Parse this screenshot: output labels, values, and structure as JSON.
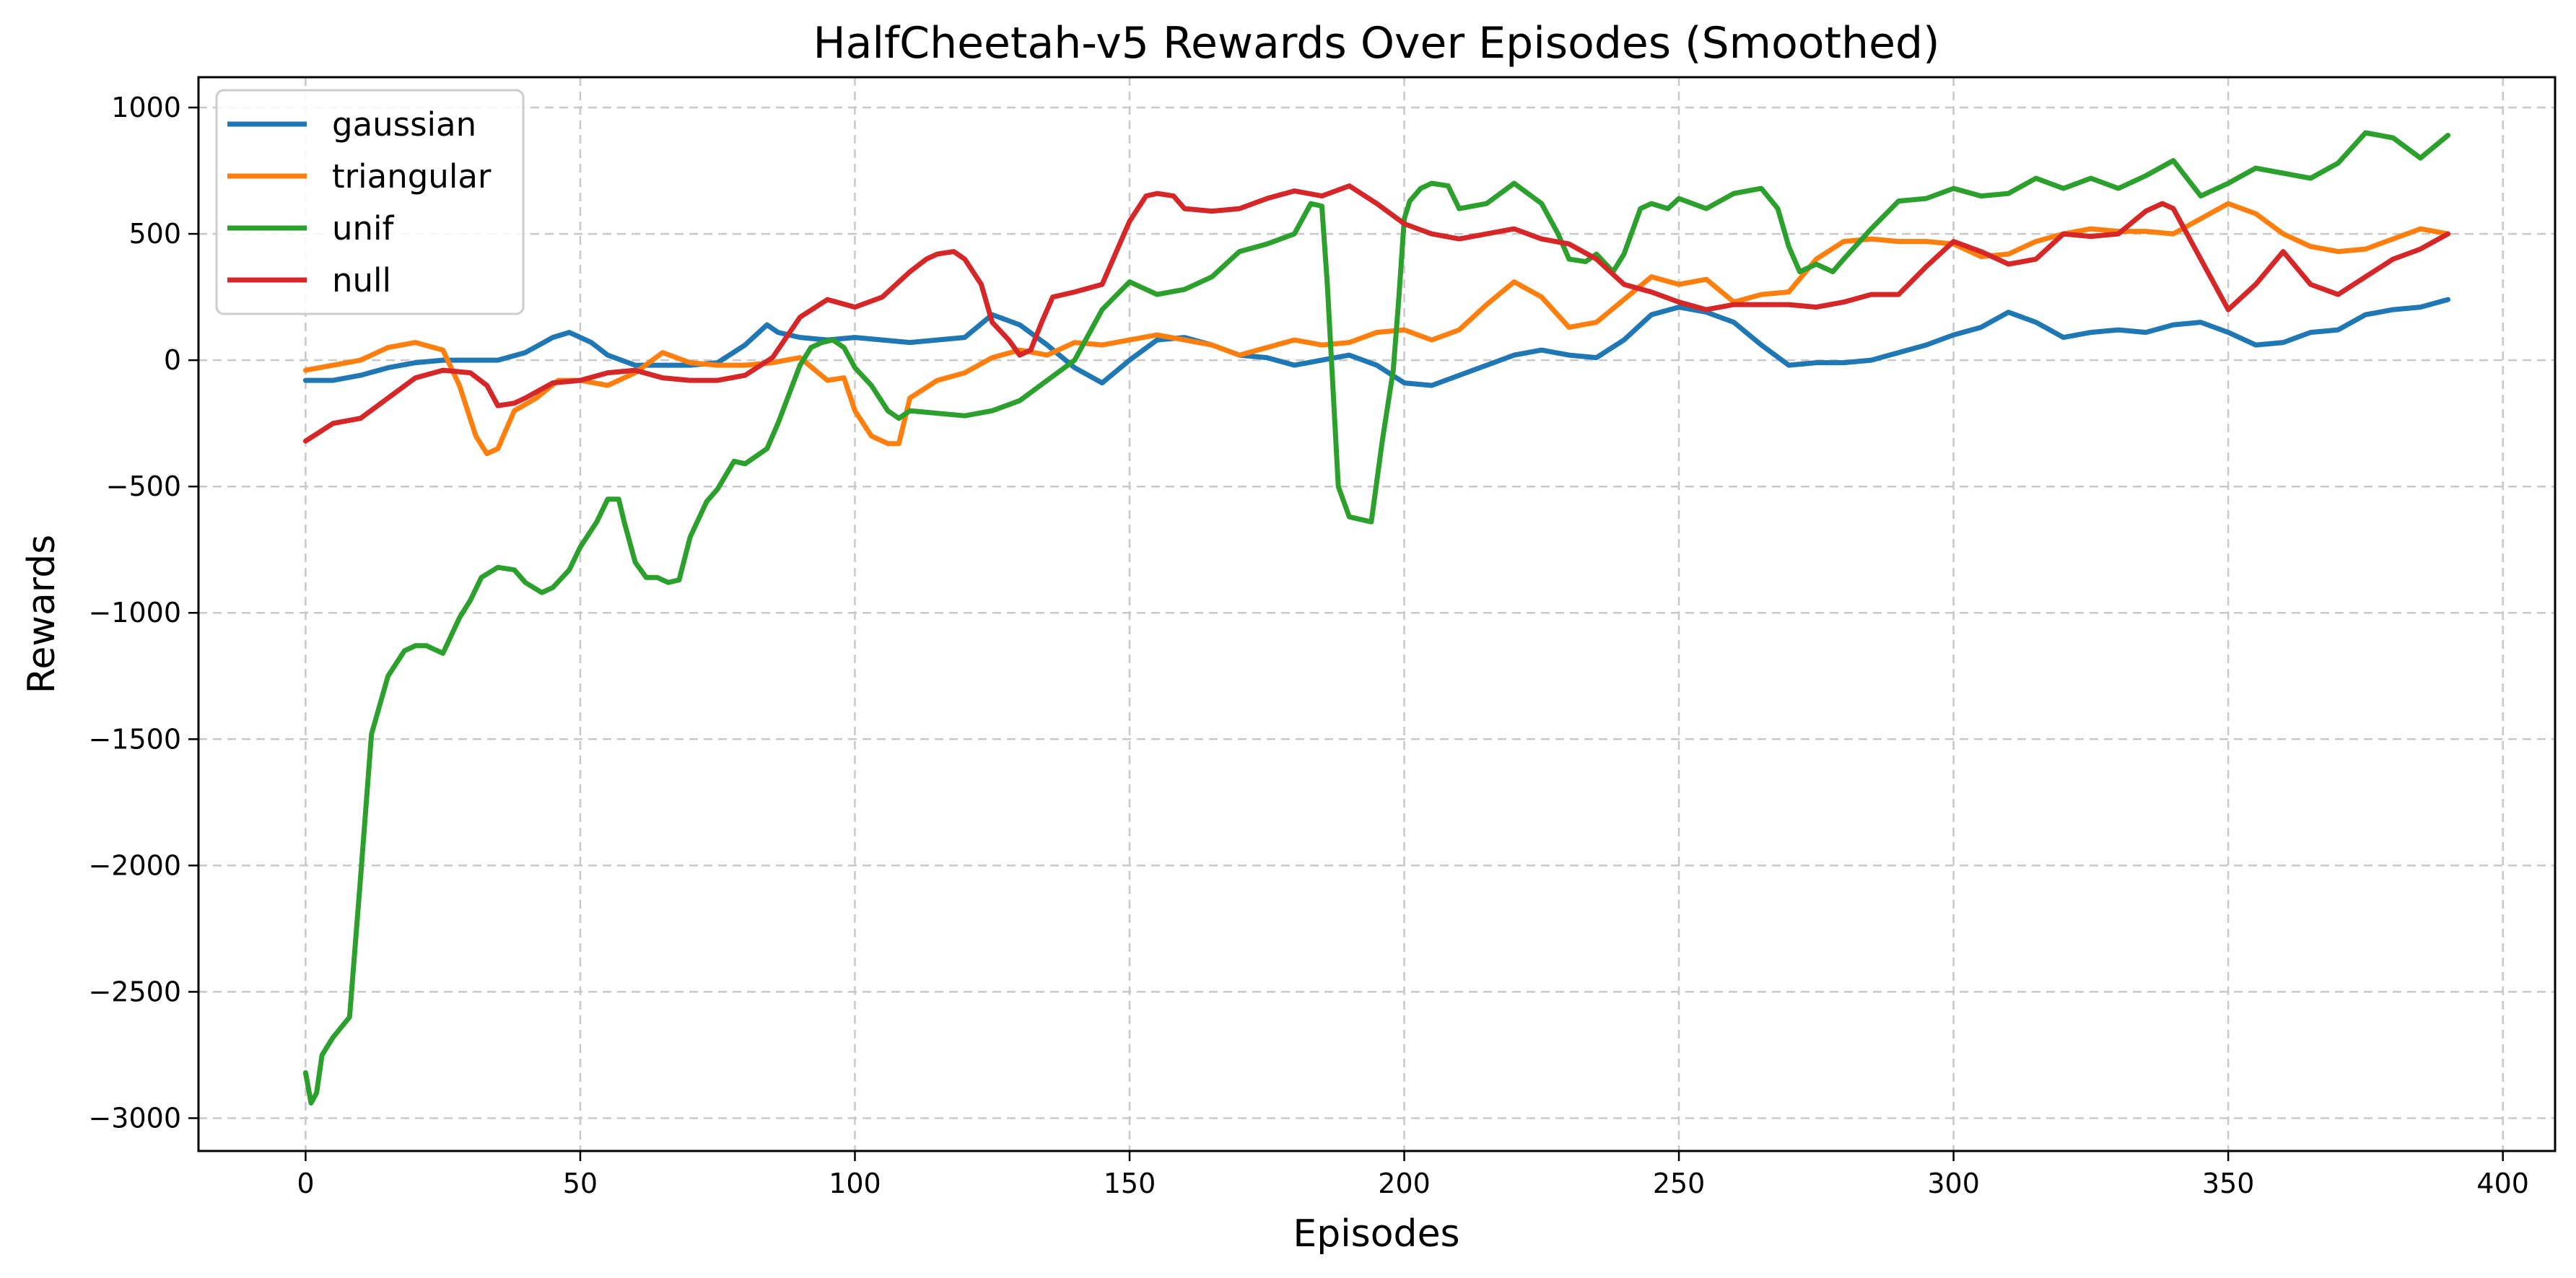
{
  "chart_data": {
    "type": "line",
    "title": "HalfCheetah-v5 Rewards Over Episodes (Smoothed)",
    "xlabel": "Episodes",
    "ylabel": "Rewards",
    "xlim": [
      -19.5,
      409.5
    ],
    "ylim": [
      -3130,
      1120
    ],
    "xticks": [
      0,
      50,
      100,
      150,
      200,
      250,
      300,
      350,
      400
    ],
    "yticks": [
      -3000,
      -2500,
      -2000,
      -1500,
      -1000,
      -500,
      0,
      500,
      1000
    ],
    "xtick_labels": [
      "0",
      "50",
      "100",
      "150",
      "200",
      "250",
      "300",
      "350",
      "400"
    ],
    "ytick_labels": [
      "−3000",
      "−2500",
      "−2000",
      "−1500",
      "−1000",
      "−500",
      "0",
      "500",
      "1000"
    ],
    "grid": true,
    "legend_position": "upper-left",
    "series": [
      {
        "name": "gaussian",
        "color": "#1f77b4",
        "x": [
          0,
          5,
          10,
          15,
          20,
          25,
          30,
          35,
          40,
          45,
          48,
          52,
          55,
          60,
          65,
          70,
          75,
          80,
          84,
          86,
          90,
          95,
          100,
          105,
          110,
          115,
          120,
          125,
          130,
          135,
          140,
          145,
          150,
          155,
          160,
          165,
          170,
          175,
          180,
          185,
          190,
          195,
          200,
          205,
          210,
          215,
          220,
          225,
          230,
          235,
          240,
          245,
          250,
          255,
          260,
          265,
          270,
          275,
          280,
          285,
          290,
          295,
          300,
          305,
          310,
          315,
          320,
          325,
          330,
          335,
          340,
          345,
          350,
          355,
          360,
          365,
          370,
          375,
          380,
          385,
          390
        ],
        "y": [
          -80,
          -80,
          -60,
          -30,
          -10,
          0,
          0,
          0,
          30,
          90,
          110,
          70,
          20,
          -20,
          -20,
          -20,
          -10,
          60,
          140,
          110,
          90,
          80,
          90,
          80,
          70,
          80,
          90,
          180,
          140,
          60,
          -30,
          -90,
          0,
          80,
          90,
          60,
          20,
          10,
          -20,
          0,
          20,
          -20,
          -90,
          -100,
          -60,
          -20,
          20,
          40,
          20,
          10,
          80,
          180,
          210,
          190,
          150,
          60,
          -20,
          -10,
          -10,
          0,
          30,
          60,
          100,
          130,
          190,
          150,
          90,
          110,
          120,
          110,
          140,
          150,
          110,
          60,
          70,
          110,
          120,
          180,
          200,
          210,
          240
        ]
      },
      {
        "name": "triangular",
        "color": "#ff7f0e",
        "x": [
          0,
          5,
          10,
          15,
          20,
          25,
          28,
          31,
          33,
          35,
          38,
          42,
          46,
          50,
          55,
          60,
          65,
          70,
          75,
          80,
          85,
          90,
          95,
          98,
          100,
          103,
          106,
          108,
          110,
          115,
          120,
          125,
          130,
          135,
          140,
          145,
          150,
          155,
          160,
          165,
          170,
          175,
          180,
          185,
          190,
          195,
          200,
          205,
          210,
          215,
          220,
          225,
          230,
          235,
          240,
          245,
          250,
          255,
          260,
          265,
          270,
          275,
          280,
          285,
          290,
          295,
          300,
          305,
          310,
          315,
          320,
          325,
          330,
          335,
          340,
          345,
          350,
          355,
          360,
          365,
          370,
          375,
          380,
          385,
          390
        ],
        "y": [
          -40,
          -20,
          0,
          50,
          70,
          40,
          -100,
          -300,
          -370,
          -350,
          -200,
          -150,
          -80,
          -80,
          -100,
          -50,
          30,
          -10,
          -20,
          -20,
          -10,
          10,
          -80,
          -70,
          -200,
          -300,
          -330,
          -330,
          -150,
          -80,
          -50,
          10,
          40,
          20,
          70,
          60,
          80,
          100,
          80,
          60,
          20,
          50,
          80,
          60,
          70,
          110,
          120,
          80,
          120,
          220,
          310,
          250,
          130,
          150,
          240,
          330,
          300,
          320,
          230,
          260,
          270,
          400,
          470,
          480,
          470,
          470,
          460,
          410,
          420,
          470,
          500,
          520,
          510,
          510,
          500,
          560,
          620,
          580,
          500,
          450,
          430,
          440,
          480,
          520,
          500
        ]
      },
      {
        "name": "unif",
        "color": "#2ca02c",
        "x": [
          0,
          1,
          2,
          3,
          5,
          8,
          10,
          12,
          15,
          18,
          20,
          22,
          25,
          28,
          30,
          32,
          35,
          38,
          40,
          43,
          45,
          48,
          50,
          53,
          55,
          57,
          58,
          60,
          62,
          64,
          66,
          68,
          70,
          73,
          75,
          78,
          80,
          84,
          86,
          90,
          92,
          94,
          96,
          98,
          100,
          103,
          106,
          108,
          110,
          115,
          120,
          125,
          130,
          135,
          140,
          145,
          150,
          155,
          160,
          165,
          170,
          175,
          180,
          183,
          185,
          186,
          188,
          190,
          192,
          194,
          196,
          198,
          199,
          200,
          201,
          203,
          205,
          208,
          210,
          215,
          220,
          225,
          228,
          230,
          233,
          235,
          238,
          240,
          243,
          245,
          248,
          250,
          255,
          260,
          265,
          268,
          270,
          272,
          275,
          278,
          280,
          285,
          290,
          295,
          300,
          305,
          310,
          315,
          320,
          325,
          330,
          335,
          340,
          345,
          350,
          355,
          360,
          365,
          370,
          375,
          380,
          385,
          390
        ],
        "y": [
          -2820,
          -2940,
          -2900,
          -2750,
          -2680,
          -2600,
          -2050,
          -1480,
          -1250,
          -1150,
          -1130,
          -1130,
          -1160,
          -1020,
          -950,
          -860,
          -820,
          -830,
          -880,
          -920,
          -900,
          -830,
          -740,
          -640,
          -550,
          -550,
          -640,
          -800,
          -860,
          -860,
          -880,
          -870,
          -700,
          -560,
          -510,
          -400,
          -410,
          -350,
          -250,
          -20,
          50,
          70,
          80,
          50,
          -30,
          -100,
          -200,
          -230,
          -200,
          -210,
          -220,
          -200,
          -160,
          -80,
          0,
          200,
          310,
          260,
          280,
          330,
          430,
          460,
          500,
          620,
          610,
          300,
          -500,
          -620,
          -630,
          -640,
          -320,
          -40,
          240,
          560,
          630,
          680,
          700,
          690,
          600,
          620,
          700,
          620,
          500,
          400,
          390,
          420,
          350,
          420,
          600,
          620,
          600,
          640,
          600,
          660,
          680,
          600,
          450,
          350,
          380,
          350,
          400,
          520,
          630,
          640,
          680,
          650,
          660,
          720,
          680,
          720,
          680,
          730,
          790,
          650,
          700,
          760,
          740,
          720,
          780,
          900,
          880,
          800,
          890
        ]
      },
      {
        "name": "null",
        "color": "#d62728",
        "x": [
          0,
          5,
          10,
          15,
          20,
          25,
          30,
          33,
          35,
          38,
          40,
          45,
          50,
          55,
          60,
          65,
          70,
          75,
          80,
          85,
          90,
          95,
          100,
          105,
          110,
          113,
          115,
          118,
          120,
          123,
          125,
          128,
          130,
          132,
          134,
          136,
          138,
          140,
          145,
          150,
          153,
          155,
          158,
          160,
          165,
          170,
          175,
          180,
          185,
          190,
          195,
          200,
          205,
          210,
          215,
          220,
          225,
          230,
          235,
          240,
          245,
          250,
          255,
          260,
          265,
          270,
          275,
          280,
          285,
          290,
          295,
          300,
          305,
          310,
          315,
          320,
          325,
          330,
          335,
          338,
          340,
          345,
          350,
          355,
          360,
          365,
          370,
          375,
          380,
          385,
          390
        ],
        "y": [
          -320,
          -250,
          -230,
          -150,
          -70,
          -40,
          -50,
          -100,
          -180,
          -170,
          -150,
          -90,
          -80,
          -50,
          -40,
          -70,
          -80,
          -80,
          -60,
          10,
          170,
          240,
          210,
          250,
          350,
          400,
          420,
          430,
          400,
          300,
          150,
          80,
          20,
          40,
          150,
          250,
          260,
          270,
          300,
          550,
          650,
          660,
          650,
          600,
          590,
          600,
          640,
          670,
          650,
          690,
          620,
          540,
          500,
          480,
          500,
          520,
          480,
          460,
          400,
          300,
          270,
          230,
          200,
          220,
          220,
          220,
          210,
          230,
          260,
          260,
          370,
          470,
          430,
          380,
          400,
          500,
          490,
          500,
          590,
          620,
          600,
          400,
          200,
          300,
          430,
          300,
          260,
          330,
          400,
          440,
          500
        ]
      }
    ]
  }
}
